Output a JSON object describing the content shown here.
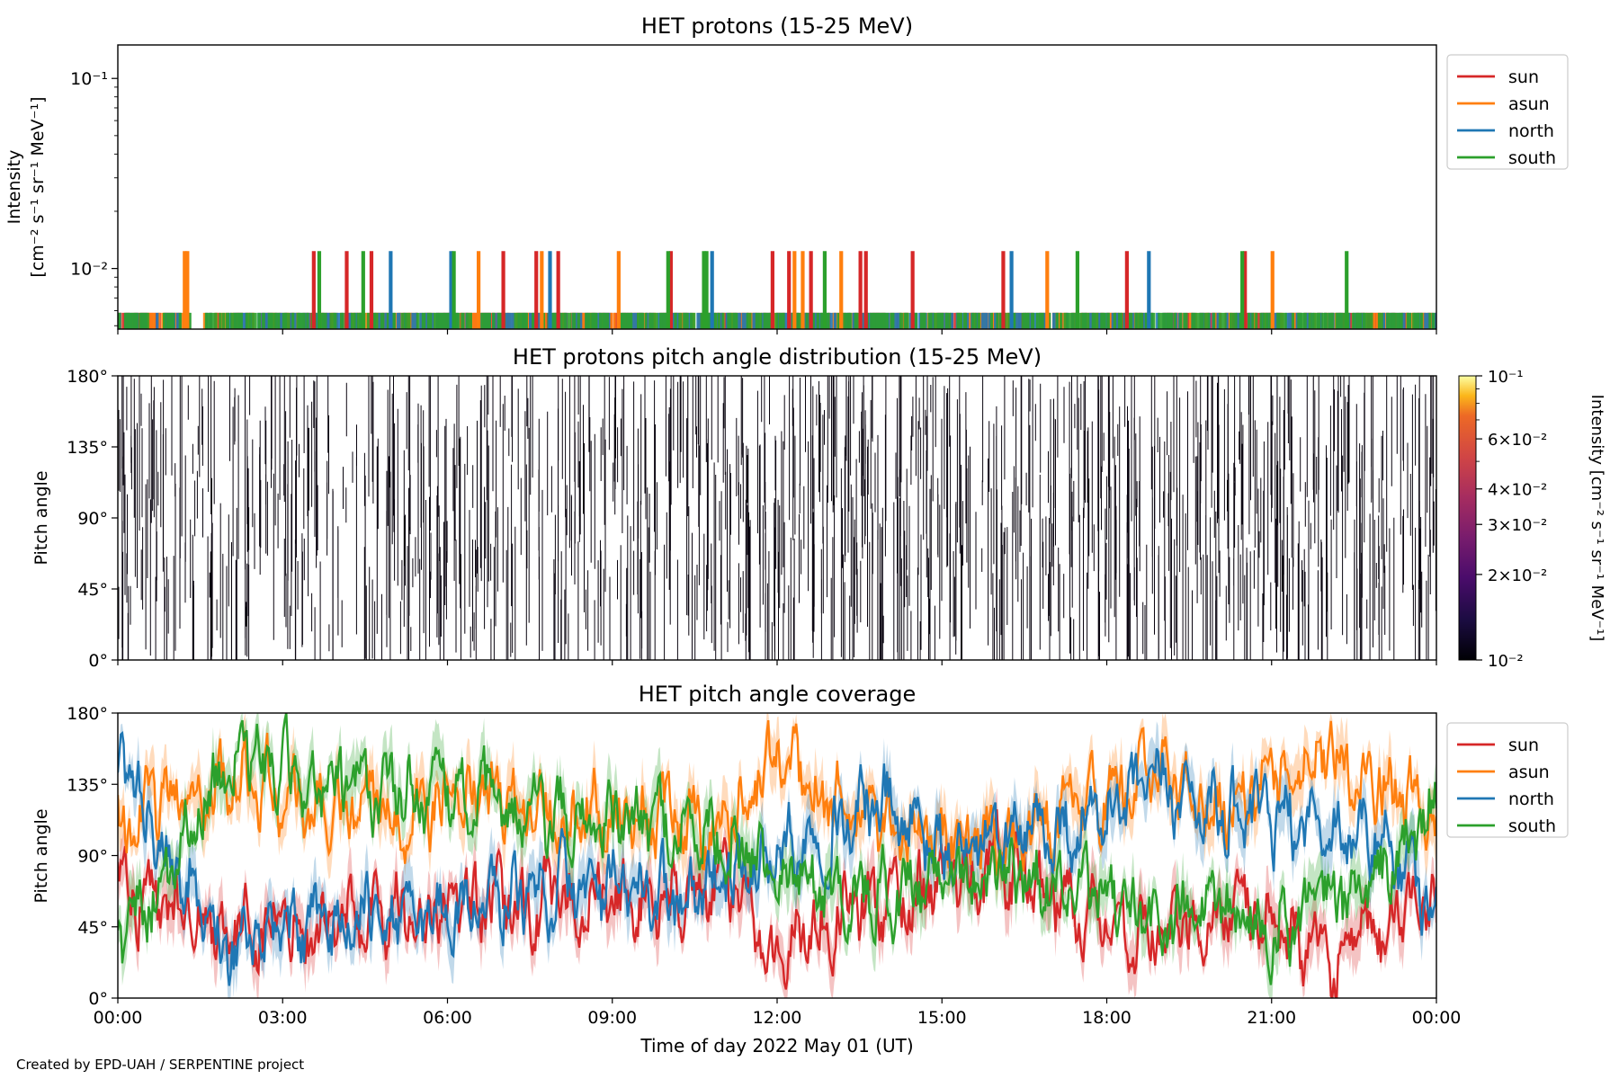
{
  "figure": {
    "credit": "Created by EPD-UAH / SERPENTINE project",
    "xlabel": "Time of day 2022 May 01 (UT)",
    "x_ticks": [
      "00:00",
      "03:00",
      "06:00",
      "09:00",
      "12:00",
      "15:00",
      "18:00",
      "21:00",
      "00:00"
    ],
    "x_range_hours": [
      0,
      24
    ]
  },
  "colors": {
    "sun": "#d62728",
    "asun": "#ff7f0e",
    "north": "#1f77b4",
    "south": "#2ca02c"
  },
  "panels": {
    "intensity": {
      "title": "HET protons (15-25 MeV)",
      "ylabel_line1": "Intensity",
      "ylabel_line2": "[cm⁻² s⁻¹ sr⁻¹ MeV⁻¹]",
      "ytick_labels": [
        "10⁻¹",
        "10⁻²"
      ]
    },
    "pad": {
      "title": "HET protons pitch angle distribution (15-25 MeV)",
      "ylabel": "Pitch angle",
      "ytick_labels": [
        "180°",
        "135°",
        "90°",
        "45°",
        "0°"
      ],
      "colorbar_label": "Intensity [cm⁻² s⁻¹ sr⁻¹ MeV⁻¹]",
      "colorbar_ticks": [
        "10⁻¹",
        "6×10⁻²",
        "4×10⁻²",
        "3×10⁻²",
        "2×10⁻²",
        "10⁻²"
      ]
    },
    "coverage": {
      "title": "HET pitch angle coverage",
      "ylabel": "Pitch angle",
      "ytick_labels": [
        "180°",
        "135°",
        "90°",
        "45°",
        "0°"
      ]
    }
  },
  "legend": [
    "sun",
    "asun",
    "north",
    "south"
  ],
  "chart_data": [
    {
      "type": "line",
      "title": "HET protons (15-25 MeV)",
      "xlabel": "",
      "ylabel": "Intensity [cm⁻² s⁻¹ sr⁻¹ MeV⁻¹]",
      "yscale": "log",
      "ylim": [
        0.0048,
        0.15
      ],
      "xlim_hours": [
        0,
        24
      ],
      "background_level": 0.0058,
      "spike_level": 0.0122,
      "legend_position": "outside right, top",
      "series": [
        {
          "name": "sun",
          "spike_hours": [
            3.55,
            4.15,
            4.6,
            7.0,
            7.6,
            8.0,
            10.05,
            11.9,
            12.2,
            12.6,
            13.5,
            13.6,
            14.45,
            16.1,
            18.35,
            20.5
          ]
        },
        {
          "name": "asun",
          "spike_hours": [
            1.2,
            1.25,
            6.55,
            7.7,
            9.1,
            12.3,
            12.45,
            13.15,
            16.9,
            21.0
          ]
        },
        {
          "name": "north",
          "spike_hours": [
            4.95,
            6.05,
            7.85,
            10.8,
            16.25,
            18.75
          ]
        },
        {
          "name": "south",
          "spike_hours": [
            3.65,
            4.45,
            6.1,
            10.0,
            10.65,
            10.7,
            12.85,
            17.45,
            20.45,
            22.35
          ]
        }
      ]
    },
    {
      "type": "heatmap",
      "title": "HET protons pitch angle distribution (15-25 MeV)",
      "ylabel": "Pitch angle",
      "ylim": [
        0,
        180
      ],
      "xlim_hours": [
        0,
        24
      ],
      "colorbar": {
        "scale": "log",
        "range": [
          0.01,
          0.1
        ],
        "colormap": "inferno"
      },
      "description_of_marks": "sparse single-count streaks at the lowest intensity across all pitch angles"
    },
    {
      "type": "line",
      "title": "HET pitch angle coverage",
      "ylabel": "Pitch angle",
      "ylim": [
        0,
        180
      ],
      "xlim_hours": [
        0,
        24
      ],
      "legend_position": "outside right, top",
      "series": [
        {
          "name": "sun",
          "x_hours": [
            0,
            2,
            4,
            6,
            8,
            10,
            11,
            12,
            13,
            14,
            15,
            16,
            17,
            18,
            19,
            20,
            21,
            22,
            23,
            24
          ],
          "pitch_angle_deg": [
            70,
            45,
            50,
            55,
            60,
            60,
            75,
            25,
            55,
            60,
            75,
            85,
            65,
            50,
            40,
            55,
            50,
            20,
            40,
            75
          ]
        },
        {
          "name": "asun",
          "x_hours": [
            0,
            2,
            4,
            6,
            8,
            10,
            11,
            12,
            13,
            14,
            15,
            16,
            17,
            18,
            19,
            20,
            21,
            22,
            23,
            24
          ],
          "pitch_angle_deg": [
            110,
            140,
            115,
            125,
            120,
            115,
            110,
            155,
            125,
            110,
            100,
            100,
            115,
            130,
            140,
            125,
            135,
            160,
            135,
            110
          ]
        },
        {
          "name": "north",
          "x_hours": [
            0,
            2,
            4,
            6,
            8,
            10,
            11,
            12,
            13,
            14,
            15,
            16,
            17,
            18,
            19,
            20,
            21,
            22,
            23,
            24
          ],
          "pitch_angle_deg": [
            150,
            30,
            45,
            55,
            70,
            65,
            75,
            90,
            110,
            120,
            90,
            100,
            105,
            115,
            135,
            120,
            110,
            110,
            100,
            60
          ]
        },
        {
          "name": "south",
          "x_hours": [
            0,
            2,
            4,
            6,
            8,
            10,
            11,
            12,
            13,
            14,
            15,
            16,
            17,
            18,
            19,
            20,
            21,
            22,
            23,
            24
          ],
          "pitch_angle_deg": [
            30,
            150,
            130,
            130,
            110,
            110,
            100,
            85,
            70,
            65,
            80,
            80,
            75,
            60,
            45,
            55,
            45,
            60,
            75,
            120
          ]
        }
      ]
    }
  ]
}
